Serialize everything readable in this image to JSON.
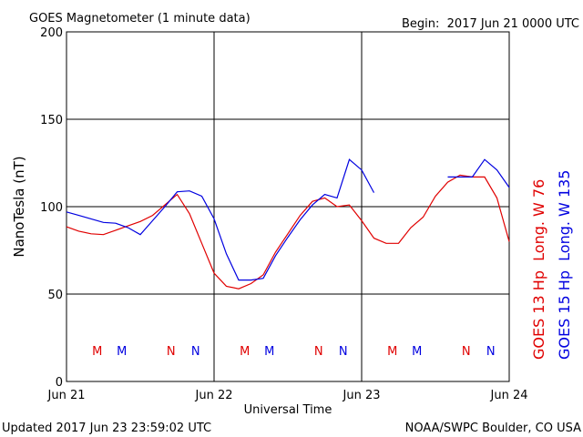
{
  "chart_data": {
    "type": "line",
    "title": "GOES Magnetometer (1 minute data)",
    "subtitle": "Begin:  2017 Jun 21 0000 UTC",
    "xlabel": "Universal Time",
    "ylabel": "NanoTesla (nT)",
    "footer_left": "Updated 2017 Jun 23 23:59:02 UTC",
    "footer_right": "NOAA/SWPC Boulder, CO USA",
    "xlim": [
      0,
      72
    ],
    "xticks": [
      {
        "value": 0,
        "label": "Jun 21"
      },
      {
        "value": 24,
        "label": "Jun 22"
      },
      {
        "value": 48,
        "label": "Jun 23"
      },
      {
        "value": 72,
        "label": "Jun 24"
      }
    ],
    "ylim": [
      0,
      200
    ],
    "yticks": [
      0,
      50,
      100,
      150,
      200
    ],
    "grid": true,
    "x": [
      0,
      2,
      4,
      6,
      8,
      10,
      12,
      14,
      16,
      18,
      20,
      22,
      24,
      26,
      28,
      30,
      32,
      34,
      36,
      38,
      40,
      42,
      44,
      46,
      48,
      50,
      52,
      54,
      56,
      58,
      60,
      62,
      64,
      66,
      68,
      70,
      72
    ],
    "series": [
      {
        "name": "GOES 13 Hp  Long. W 76",
        "color": "#e00000",
        "values": [
          88.5,
          86,
          84.5,
          84,
          86.5,
          89,
          91.5,
          95,
          101,
          107,
          96,
          79,
          62,
          54.5,
          53,
          56,
          61,
          74,
          84.5,
          95,
          103,
          105,
          100,
          101,
          92,
          82,
          79,
          79,
          88,
          94,
          106,
          114,
          118,
          117,
          117,
          105,
          80
        ]
      },
      {
        "name": "GOES 15 Hp  Long. W 135",
        "color": "#0000e0",
        "values": [
          97,
          95,
          93,
          91,
          90.5,
          88,
          84,
          92,
          100,
          108.5,
          109,
          106,
          93,
          73,
          58,
          58,
          59,
          72,
          82.5,
          92.5,
          101,
          107,
          105,
          127,
          121,
          108,
          null,
          null,
          null,
          null,
          null,
          117,
          117,
          117,
          127,
          121,
          111
        ]
      }
    ],
    "markers": [
      {
        "label": "M",
        "x": 5,
        "series": 0
      },
      {
        "label": "M",
        "x": 9,
        "series": 1
      },
      {
        "label": "N",
        "x": 17,
        "series": 0
      },
      {
        "label": "N",
        "x": 21,
        "series": 1
      },
      {
        "label": "M",
        "x": 29,
        "series": 0
      },
      {
        "label": "M",
        "x": 33,
        "series": 1
      },
      {
        "label": "N",
        "x": 41,
        "series": 0
      },
      {
        "label": "N",
        "x": 45,
        "series": 1
      },
      {
        "label": "M",
        "x": 53,
        "series": 0
      },
      {
        "label": "M",
        "x": 57,
        "series": 1
      },
      {
        "label": "N",
        "x": 65,
        "series": 0
      },
      {
        "label": "N",
        "x": 69,
        "series": 1
      }
    ]
  }
}
